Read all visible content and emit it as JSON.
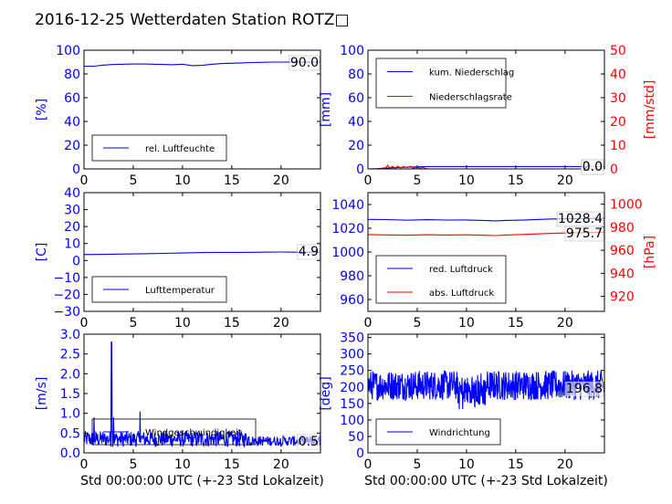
{
  "title": "2016-12-25 Wetterdaten Station ROTZ□",
  "colors": {
    "blue": "#0000ff",
    "red": "#ff0000",
    "black": "#000000",
    "light_blue": "#8080ff"
  },
  "chart_data": [
    {
      "type": "line",
      "id": "humidity",
      "ylabel": "[%]",
      "xlim": [
        0,
        24
      ],
      "xticks": [
        0,
        5,
        10,
        15,
        20
      ],
      "ylim": [
        0,
        100
      ],
      "yticks": [
        0,
        20,
        40,
        60,
        80,
        100
      ],
      "series": [
        {
          "name": "rel. Luftfeuchte",
          "color": "#0000ff",
          "x": [
            0,
            1,
            2,
            3,
            4,
            5,
            6,
            7,
            8,
            9,
            10,
            11,
            12,
            13,
            14,
            15,
            16,
            17,
            18,
            19,
            20,
            21,
            22,
            23,
            24
          ],
          "y": [
            86.5,
            86.5,
            87.5,
            88,
            88.2,
            88.4,
            88.5,
            88.2,
            88,
            87.8,
            88.2,
            87,
            87.2,
            88.2,
            88.8,
            89,
            89.3,
            89.6,
            89.8,
            90,
            90,
            90,
            90.1,
            90,
            90
          ]
        }
      ],
      "legend": "lower-left",
      "last_value": "90.0"
    },
    {
      "type": "line",
      "id": "precipitation",
      "ylabel": "[mm]",
      "ylabel_right": "[mm/std]",
      "xlim": [
        0,
        24
      ],
      "xticks": [
        0,
        5,
        10,
        15,
        20
      ],
      "ylim": [
        0,
        100
      ],
      "yticks": [
        0,
        20,
        40,
        60,
        80,
        100
      ],
      "ylim_right": [
        0,
        50
      ],
      "yticks_right": [
        0,
        10,
        20,
        30,
        40,
        50
      ],
      "series": [
        {
          "name": "kum. Niederschlag",
          "color": "#0000ff",
          "axis": "left",
          "x": [
            0,
            1,
            1.5,
            2,
            2.5,
            3,
            4,
            5,
            6,
            8,
            10,
            12,
            14,
            16,
            18,
            20,
            22,
            24
          ],
          "y": [
            0,
            0.2,
            0.5,
            0.8,
            1.0,
            1.2,
            1.5,
            1.8,
            2.0,
            2.0,
            2.0,
            2.0,
            2.0,
            2.0,
            2.0,
            2.0,
            2.0,
            2.0
          ]
        },
        {
          "name": "Niederschlagsrate",
          "color": "#ff0000",
          "axis": "right",
          "x": [
            0,
            1,
            1.5,
            1.8,
            2.0,
            2.2,
            2.5,
            2.8,
            3.0,
            3.3,
            3.6,
            4.0,
            4.3,
            4.6,
            5.0,
            5.3,
            5.6,
            5.9,
            6.2,
            7,
            10,
            14,
            18,
            22,
            24
          ],
          "y": [
            0,
            0,
            0.3,
            0.5,
            1.5,
            0.5,
            1.0,
            0.3,
            1.2,
            0.4,
            1.0,
            0.5,
            1.2,
            0.2,
            0.8,
            0.3,
            0.6,
            0.1,
            0,
            0,
            0,
            0,
            0,
            0,
            0
          ]
        }
      ],
      "legend": "upper-left",
      "last_value": "2.0",
      "last_value_right": "0.0"
    },
    {
      "type": "line",
      "id": "temperature",
      "ylabel": "[C]",
      "xlim": [
        0,
        24
      ],
      "xticks": [
        0,
        5,
        10,
        15,
        20
      ],
      "ylim": [
        -30,
        40
      ],
      "yticks": [
        -30,
        -20,
        -10,
        0,
        10,
        20,
        30,
        40
      ],
      "series": [
        {
          "name": "Lufttemperatur",
          "color": "#0000ff",
          "x": [
            0,
            2,
            4,
            6,
            8,
            10,
            12,
            14,
            16,
            18,
            20,
            22,
            24
          ],
          "y": [
            3.5,
            3.6,
            3.8,
            4.0,
            4.2,
            4.4,
            4.7,
            4.8,
            4.8,
            4.9,
            5.0,
            4.9,
            4.9
          ]
        }
      ],
      "legend": "lower-left",
      "last_value": "4.9"
    },
    {
      "type": "line",
      "id": "pressure",
      "ylabel_right": "[hPa]",
      "xlim": [
        0,
        24
      ],
      "xticks": [
        0,
        5,
        10,
        15,
        20
      ],
      "ylim": [
        950,
        1050
      ],
      "yticks": [
        960,
        980,
        1000,
        1020,
        1040
      ],
      "ylim_right": [
        907,
        1010
      ],
      "yticks_right": [
        920,
        940,
        960,
        980,
        1000
      ],
      "series": [
        {
          "name": "red. Luftdruck",
          "color": "#0000ff",
          "axis": "left",
          "x": [
            0,
            2,
            4,
            6,
            8,
            10,
            12,
            13,
            14,
            16,
            18,
            20,
            22,
            24
          ],
          "y": [
            1027.5,
            1027.3,
            1026.8,
            1027.2,
            1026.9,
            1027,
            1026.5,
            1026.2,
            1026.6,
            1027.0,
            1027.6,
            1028.0,
            1028.3,
            1028.4
          ]
        },
        {
          "name": "abs. Luftdruck",
          "color": "#ff0000",
          "axis": "right",
          "x": [
            0,
            2,
            4,
            6,
            8,
            10,
            12,
            13,
            14,
            16,
            18,
            20,
            22,
            24
          ],
          "y": [
            973.6,
            973.3,
            973.1,
            973.5,
            973.2,
            973.4,
            973.0,
            972.8,
            973.2,
            973.8,
            974.5,
            975.0,
            975.4,
            975.7
          ]
        }
      ],
      "legend": "lower-left",
      "last_value": "1028.4",
      "last_value_right": "975.7"
    },
    {
      "type": "line",
      "id": "wind_speed",
      "ylabel": "[m/s]",
      "xlabel": "Std 00:00:00 UTC (+-23 Std Lokalzeit)",
      "xlim": [
        0,
        24
      ],
      "xticks": [
        0,
        5,
        10,
        15,
        20
      ],
      "ylim": [
        0,
        3.0
      ],
      "yticks": [
        0.0,
        0.5,
        1.0,
        1.5,
        2.0,
        2.5,
        3.0
      ],
      "series": [
        {
          "name": "Windgeschwindigkeit",
          "color": "#0000ff",
          "baseline_mean": 0.35,
          "noise_amplitude": 0.2,
          "spikes": [
            {
              "x": 2.8,
              "y": 2.8
            },
            {
              "x": 3.0,
              "y": 0.9
            },
            {
              "x": 5.7,
              "y": 1.05
            },
            {
              "x": 1.0,
              "y": 0.9
            }
          ]
        }
      ],
      "legend": "lower-left",
      "last_value": "0.5"
    },
    {
      "type": "line",
      "id": "wind_direction",
      "ylabel": "[deg]",
      "xlabel": "Std 00:00:00 UTC (+-23 Std Lokalzeit)",
      "xlim": [
        0,
        24
      ],
      "xticks": [
        0,
        5,
        10,
        15,
        20
      ],
      "ylim": [
        0,
        360
      ],
      "yticks": [
        0,
        50,
        100,
        150,
        200,
        250,
        300,
        350
      ],
      "series": [
        {
          "name": "Windrichtung",
          "color": "#0000ff",
          "baseline_mean": 205,
          "noise_amplitude": 45
        }
      ],
      "legend": "lower-left",
      "last_value": "196.8"
    }
  ]
}
